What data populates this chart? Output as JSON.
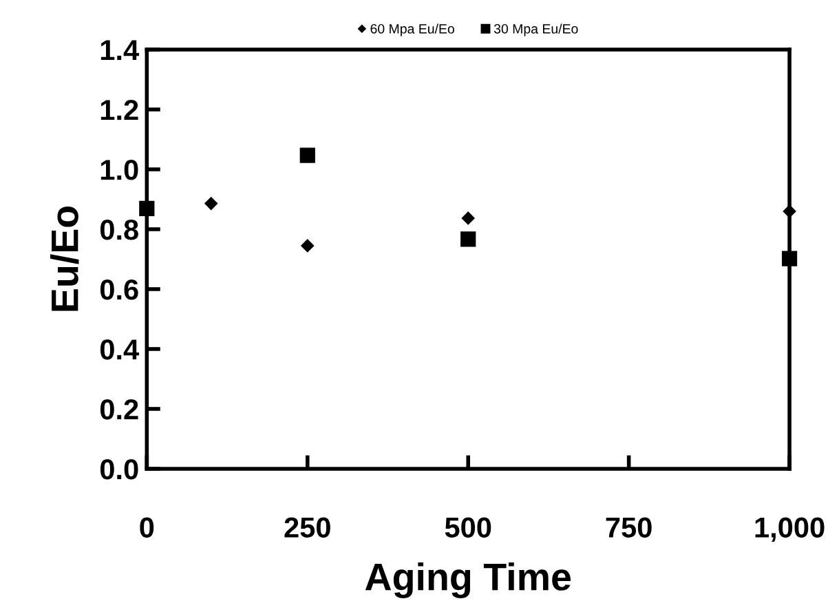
{
  "chart_data": {
    "type": "scatter",
    "xlabel": "Aging Time",
    "ylabel": "Eu/Eo",
    "series": [
      {
        "name": "60 Mpa Eu/Eo",
        "color": "#000000",
        "marker": "diamond",
        "x": [
          100,
          250,
          500,
          1000
        ],
        "values": [
          0.886,
          0.745,
          0.837,
          0.86
        ]
      },
      {
        "name": "30 Mpa Eu/Eo",
        "color": "#000000",
        "marker": "square",
        "x": [
          0,
          250,
          500,
          1000
        ],
        "values": [
          0.869,
          1.047,
          0.767,
          0.702
        ]
      }
    ],
    "xlim": [
      0,
      1000
    ],
    "ylim": [
      0,
      1.4
    ],
    "xticks": [
      0,
      250,
      500,
      750,
      {
        "value": 1000,
        "label": "1,000"
      }
    ],
    "yticks": [
      {
        "value": 0,
        "label": "0.0"
      },
      0.2,
      0.4,
      0.6,
      0.8,
      {
        "value": 1.0,
        "label": "1.0"
      },
      1.2,
      1.4
    ],
    "grid": false,
    "legend": "top"
  }
}
